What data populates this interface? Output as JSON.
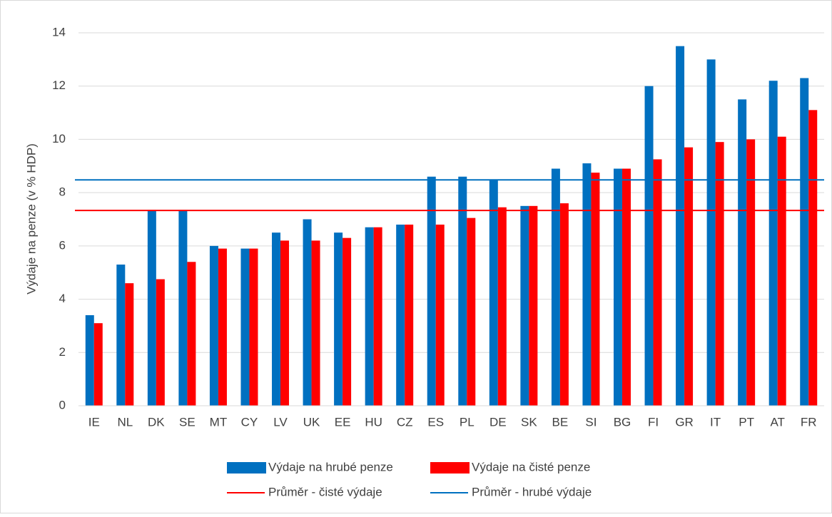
{
  "chart_data": {
    "type": "bar",
    "y_label": "Výdaje na penze (v % HDP)",
    "categories": [
      "IE",
      "NL",
      "DK",
      "SE",
      "MT",
      "CY",
      "LV",
      "UK",
      "EE",
      "HU",
      "CZ",
      "ES",
      "PL",
      "DE",
      "SK",
      "BE",
      "SI",
      "BG",
      "FI",
      "GR",
      "IT",
      "PT",
      "AT",
      "FR"
    ],
    "series": [
      {
        "name": "Výdaje na hrubé penze",
        "color": "#0070c0",
        "values": [
          3.4,
          5.3,
          7.35,
          7.35,
          6.0,
          5.9,
          6.5,
          7.0,
          6.5,
          6.7,
          6.8,
          8.6,
          8.6,
          8.5,
          7.5,
          8.9,
          9.1,
          8.9,
          12.0,
          13.5,
          13.0,
          11.5,
          12.2,
          12.3
        ]
      },
      {
        "name": "Výdaje na čisté penze",
        "color": "#ff0000",
        "values": [
          3.1,
          4.6,
          4.75,
          5.4,
          5.9,
          5.9,
          6.2,
          6.2,
          6.3,
          6.7,
          6.8,
          6.8,
          7.05,
          7.45,
          7.5,
          7.6,
          8.75,
          8.9,
          9.25,
          9.7,
          9.9,
          10.0,
          10.1,
          11.1
        ]
      }
    ],
    "reference_lines": [
      {
        "name": "Průměr - čisté výdaje",
        "color": "#ff0000",
        "value": 7.33
      },
      {
        "name": "Průměr - hrubé výdaje",
        "color": "#0070c0",
        "value": 8.48
      }
    ],
    "ylim": [
      0,
      14
    ],
    "yticks": [
      0,
      2,
      4,
      6,
      8,
      10,
      12,
      14
    ],
    "grid": true
  }
}
